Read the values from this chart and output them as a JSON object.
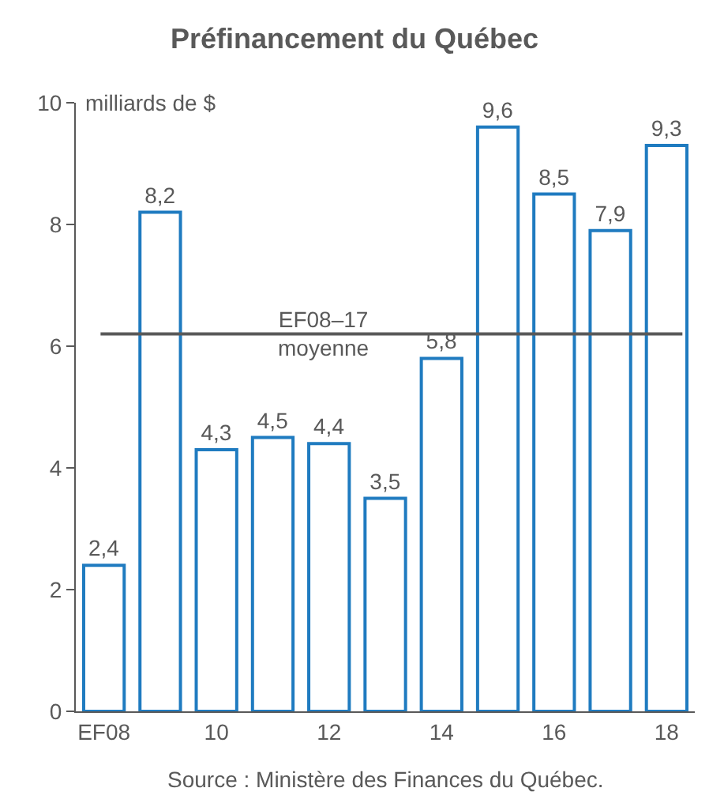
{
  "chart_data": {
    "type": "bar",
    "title": "Préfinancement du Québec",
    "ylabel": "milliards de $",
    "categories": [
      "EF08",
      null,
      "10",
      null,
      "12",
      null,
      "14",
      null,
      "16",
      null,
      "18"
    ],
    "values": [
      2.4,
      8.2,
      4.3,
      4.5,
      4.4,
      3.5,
      5.8,
      9.6,
      8.5,
      7.9,
      9.3
    ],
    "value_labels": [
      "2,4",
      "8,2",
      "4,3",
      "4,5",
      "4,4",
      "3,5",
      "5,8",
      "9,6",
      "8,5",
      "7,9",
      "9,3"
    ],
    "color": "#1f7bc0",
    "ylim": [
      0,
      10
    ],
    "yticks": [
      0,
      2,
      4,
      6,
      8,
      10
    ],
    "grid": false,
    "ref_lines": [
      {
        "axis": "y",
        "value": 6.2,
        "label": "EF08–17\nmoyenne",
        "color": "#595959"
      }
    ],
    "annotations": [
      "Source : Ministère des Finances du Québec."
    ]
  }
}
